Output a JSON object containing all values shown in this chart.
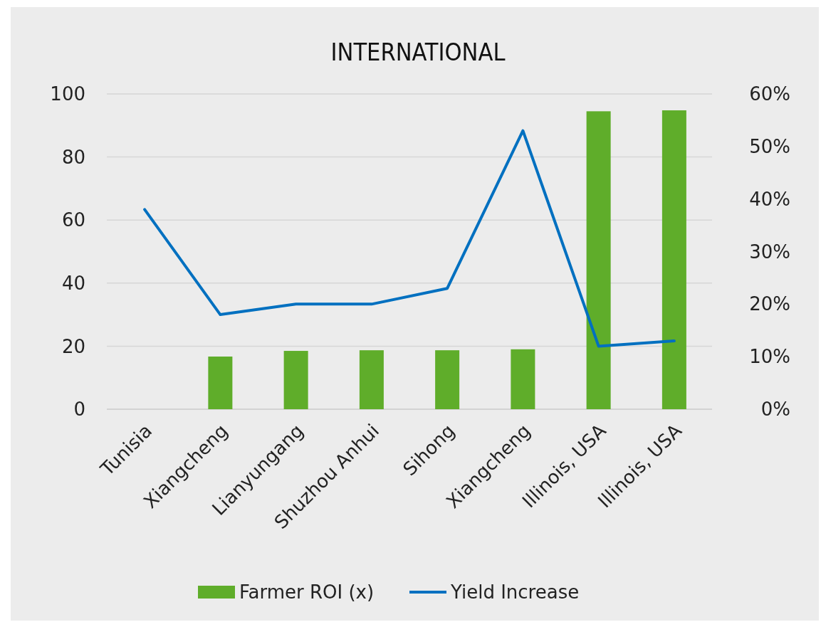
{
  "chart_data": {
    "type": "bar",
    "title": "INTERNATIONAL",
    "categories": [
      "Tunisia",
      "Xiangcheng",
      "Lianyungang",
      "Shuzhou Anhui",
      "Sihong",
      "Xiangcheng",
      "Illinois, USA",
      "Illinois, USA"
    ],
    "series": [
      {
        "name": "Farmer ROI (x)",
        "color": "#5fad2a",
        "values": [
          null,
          16.7,
          18.5,
          18.7,
          18.7,
          19.0,
          94.5,
          94.8
        ]
      },
      {
        "name": "Yield Increase",
        "type": "line",
        "axis": "y2",
        "color": "#0070c0",
        "values": [
          38,
          18,
          20,
          20,
          23,
          53,
          12,
          13
        ]
      }
    ],
    "ylim": [
      0,
      100
    ],
    "yticks": [
      0,
      20,
      40,
      60,
      80,
      100
    ],
    "y2lim": [
      0,
      60
    ],
    "y2ticks": [
      {
        "value": 0,
        "label": "0%"
      },
      {
        "value": 10,
        "label": "10%"
      },
      {
        "value": 20,
        "label": "20%"
      },
      {
        "value": 30,
        "label": "30%"
      },
      {
        "value": 40,
        "label": "40%"
      },
      {
        "value": 50,
        "label": "50%"
      },
      {
        "value": 60,
        "label": "60%"
      }
    ],
    "grid": "y",
    "legend": "bottom",
    "marker": "none",
    "line_style": "solid"
  }
}
